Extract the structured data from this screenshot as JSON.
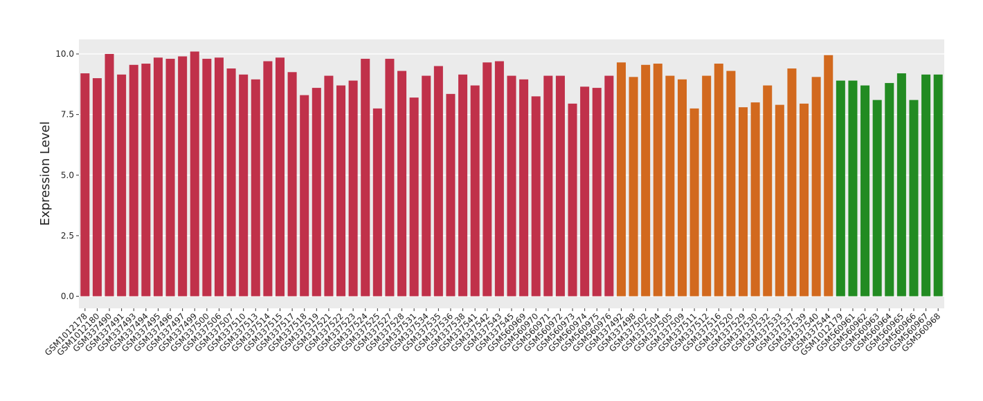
{
  "chart_data": {
    "type": "bar",
    "y_label": "Expression Level",
    "categories": [
      "GSM1012178",
      "GSM1012180",
      "GSM337490",
      "GSM337491",
      "GSM337493",
      "GSM337494",
      "GSM337495",
      "GSM337496",
      "GSM337497",
      "GSM337499",
      "GSM337500",
      "GSM337506",
      "GSM337507",
      "GSM337510",
      "GSM337513",
      "GSM337514",
      "GSM337515",
      "GSM337517",
      "GSM337518",
      "GSM337519",
      "GSM337521",
      "GSM337522",
      "GSM337523",
      "GSM337524",
      "GSM337525",
      "GSM337527",
      "GSM337528",
      "GSM337531",
      "GSM337534",
      "GSM337535",
      "GSM337536",
      "GSM337538",
      "GSM337541",
      "GSM337542",
      "GSM337543",
      "GSM337545",
      "GSM560969",
      "GSM560970",
      "GSM560971",
      "GSM560972",
      "GSM560973",
      "GSM560974",
      "GSM560975",
      "GSM560976",
      "GSM337492",
      "GSM337498",
      "GSM337502",
      "GSM337504",
      "GSM337505",
      "GSM337509",
      "GSM337511",
      "GSM337512",
      "GSM337516",
      "GSM337520",
      "GSM337529",
      "GSM337530",
      "GSM337532",
      "GSM337533",
      "GSM337537",
      "GSM337539",
      "GSM337540",
      "GSM337544",
      "GSM1012179",
      "GSM560961",
      "GSM560962",
      "GSM560963",
      "GSM560964",
      "GSM560965",
      "GSM560966",
      "GSM560967",
      "GSM560968"
    ],
    "values": [
      9.2,
      9.0,
      10.0,
      9.15,
      9.55,
      9.6,
      9.85,
      9.8,
      9.9,
      10.1,
      9.8,
      9.85,
      9.4,
      9.15,
      8.95,
      9.7,
      9.85,
      9.25,
      8.3,
      8.6,
      9.1,
      8.7,
      8.9,
      9.8,
      7.75,
      9.8,
      9.3,
      8.2,
      9.1,
      9.5,
      8.35,
      9.15,
      8.7,
      9.65,
      9.7,
      9.1,
      8.95,
      8.25,
      9.1,
      9.1,
      7.95,
      8.65,
      8.6,
      9.1,
      9.65,
      9.05,
      9.55,
      9.6,
      9.1,
      8.95,
      7.75,
      9.1,
      9.6,
      9.3,
      7.8,
      8.0,
      8.7,
      7.9,
      9.4,
      7.95,
      9.05,
      9.95,
      8.9,
      8.9,
      8.7,
      8.1,
      8.8,
      9.2,
      8.1,
      9.15,
      9.15
    ],
    "colors": [
      "#c0314a",
      "#c0314a",
      "#c0314a",
      "#c0314a",
      "#c0314a",
      "#c0314a",
      "#c0314a",
      "#c0314a",
      "#c0314a",
      "#c0314a",
      "#c0314a",
      "#c0314a",
      "#c0314a",
      "#c0314a",
      "#c0314a",
      "#c0314a",
      "#c0314a",
      "#c0314a",
      "#c0314a",
      "#c0314a",
      "#c0314a",
      "#c0314a",
      "#c0314a",
      "#c0314a",
      "#c0314a",
      "#c0314a",
      "#c0314a",
      "#c0314a",
      "#c0314a",
      "#c0314a",
      "#c0314a",
      "#c0314a",
      "#c0314a",
      "#c0314a",
      "#c0314a",
      "#c0314a",
      "#c0314a",
      "#c0314a",
      "#c0314a",
      "#c0314a",
      "#c0314a",
      "#c0314a",
      "#c0314a",
      "#c0314a",
      "#d2691e",
      "#d2691e",
      "#d2691e",
      "#d2691e",
      "#d2691e",
      "#d2691e",
      "#d2691e",
      "#d2691e",
      "#d2691e",
      "#d2691e",
      "#d2691e",
      "#d2691e",
      "#d2691e",
      "#d2691e",
      "#d2691e",
      "#d2691e",
      "#d2691e",
      "#d2691e",
      "#228b22",
      "#228b22",
      "#228b22",
      "#228b22",
      "#228b22",
      "#228b22",
      "#228b22",
      "#228b22",
      "#228b22"
    ],
    "ylim": [
      -0.5,
      10.6
    ],
    "yticks": [
      {
        "value": 0,
        "label": "0.0"
      },
      2.5,
      {
        "value": 5,
        "label": "5.0"
      },
      7.5,
      {
        "value": 10,
        "label": "10.0"
      }
    ],
    "grid": true
  }
}
